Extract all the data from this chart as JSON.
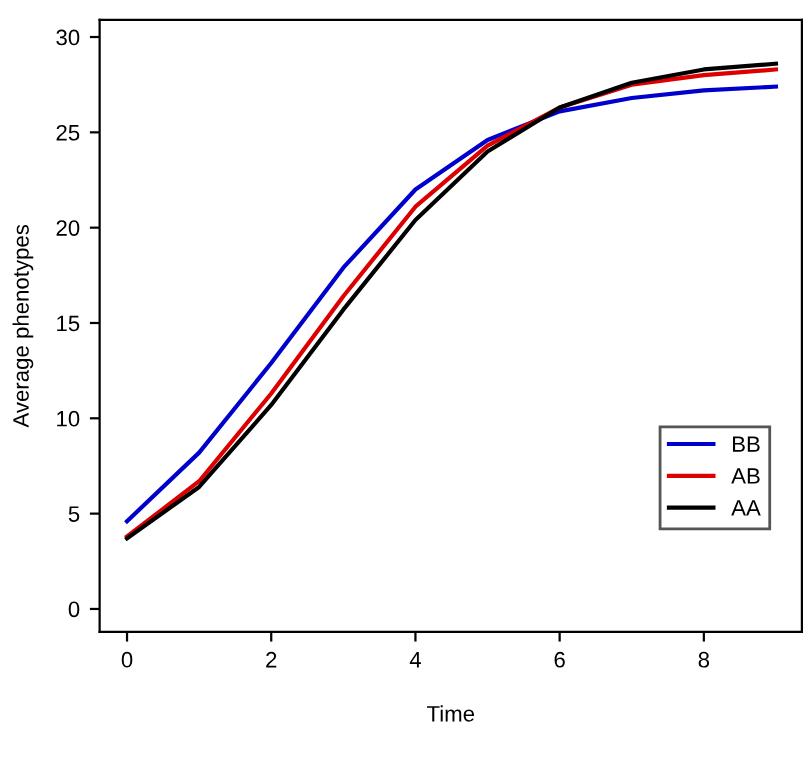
{
  "chart_data": {
    "type": "line",
    "xlabel": "Time",
    "ylabel": "Average phenotypes",
    "x": [
      0,
      1,
      2,
      3,
      4,
      5,
      6,
      7,
      8,
      9
    ],
    "series": [
      {
        "name": "BB",
        "color": "#0000cc",
        "values": [
          4.6,
          8.2,
          12.9,
          17.9,
          22.0,
          24.6,
          26.1,
          26.8,
          27.2,
          27.4
        ]
      },
      {
        "name": "AB",
        "color": "#dd0000",
        "values": [
          3.8,
          6.7,
          11.3,
          16.4,
          21.1,
          24.3,
          26.3,
          27.5,
          28.0,
          28.3
        ]
      },
      {
        "name": "AA",
        "color": "#000000",
        "values": [
          3.7,
          6.4,
          10.7,
          15.7,
          20.4,
          24.0,
          26.3,
          27.6,
          28.3,
          28.6
        ]
      }
    ],
    "xlim": [
      -0.38,
      9.36
    ],
    "ylim": [
      -1.2,
      30.9
    ],
    "xticks": [
      0,
      2,
      4,
      6,
      8
    ],
    "yticks": [
      0,
      5,
      10,
      15,
      20,
      25,
      30
    ],
    "legend": "lower right",
    "grid": false,
    "marker": "none",
    "line_style": "solid"
  }
}
